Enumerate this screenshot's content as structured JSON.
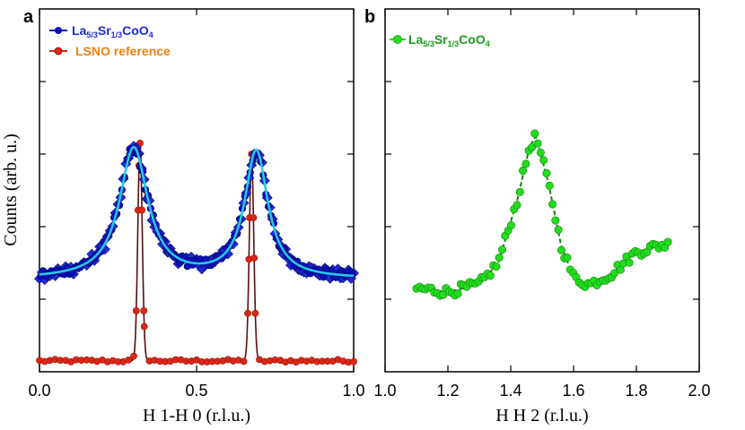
{
  "figure": {
    "panel_a_letter": "a",
    "panel_b_letter": "b"
  },
  "chart_data": [
    {
      "type": "scatter",
      "panel": "a",
      "xlabel": "H 1-H 0 (r.l.u.)",
      "ylabel": "Counts (arb. u.)",
      "xlim": [
        0.0,
        1.0
      ],
      "ylim": [
        0,
        100
      ],
      "xticks": [
        "0.0",
        "0.5",
        "1.0"
      ],
      "y_tick_values": [
        20,
        40,
        60,
        80
      ],
      "y_tick_labels_shown": false,
      "grid": false,
      "legend_position": "top-left",
      "legend": [
        {
          "label_main": "La",
          "sub1": "5/3",
          "mid": "Sr",
          "sub2": "1/3",
          "tail": "CoO",
          "sub3": "4",
          "color": "#0a10b8",
          "text_color": "#1f2bd6"
        },
        {
          "label_main": "LSNO reference",
          "color": "#e02418",
          "text_color": "#f07f10"
        }
      ],
      "series": [
        {
          "name": "La5/3Sr1/3CoO4",
          "marker": "circle",
          "color": "#0a10b8",
          "fit_color": "#25c8e6",
          "model": {
            "baseline": 25.5,
            "peaks": [
              {
                "center": 0.3,
                "amplitude": 36,
                "width": 0.055
              },
              {
                "center": 0.69,
                "amplitude": 35,
                "width": 0.045
              }
            ]
          },
          "x_range": [
            0.0,
            1.0
          ],
          "n_points": 60
        },
        {
          "name": "La5/3Sr1/3CoO4 (diamond markers)",
          "marker": "diamond",
          "color": "#1f2bd6",
          "model": {
            "baseline": 25.5,
            "peaks": [
              {
                "center": 0.3,
                "amplitude": 36,
                "width": 0.055
              },
              {
                "center": 0.69,
                "amplitude": 35,
                "width": 0.045
              }
            ]
          },
          "x_range": [
            0.0,
            1.0
          ],
          "n_points": 60
        },
        {
          "name": "LSNO reference",
          "marker": "circle",
          "color": "#e02418",
          "line_color": "#5a0e0e",
          "model": {
            "baseline": 3,
            "peaks": [
              {
                "center": 0.32,
                "amplitude": 60,
                "width": 0.007
              },
              {
                "center": 0.675,
                "amplitude": 57,
                "width": 0.007
              }
            ]
          },
          "x_range": [
            0.0,
            1.0
          ],
          "n_points": 60
        }
      ]
    },
    {
      "type": "scatter",
      "panel": "b",
      "xlabel": "H H 2 (r.l.u.)",
      "ylabel": "",
      "xlim": [
        1.0,
        2.0
      ],
      "ylim": [
        0,
        100
      ],
      "xticks": [
        "1.0",
        "1.2",
        "1.4",
        "1.6",
        "1.8",
        "2.0"
      ],
      "y_tick_values": [
        20,
        40,
        60,
        80
      ],
      "y_tick_labels_shown": false,
      "grid": false,
      "legend_position": "top-left",
      "legend": [
        {
          "label_main": "La",
          "sub1": "5/3",
          "mid": "Sr",
          "sub2": "1/3",
          "tail": "CoO",
          "sub3": "4",
          "color": "#22dd1e",
          "text_color": "#1a9a18"
        }
      ],
      "series": [
        {
          "name": "La5/3Sr1/3CoO4",
          "marker": "circle",
          "color": "#22dd1e",
          "fit_color": "#1f7a1a",
          "x_range": [
            1.1,
            1.9
          ],
          "n_points": 85,
          "approx_points": [
            [
              1.1,
              23
            ],
            [
              1.2,
              22
            ],
            [
              1.3,
              24
            ],
            [
              1.36,
              30
            ],
            [
              1.42,
              47
            ],
            [
              1.46,
              62
            ],
            [
              1.48,
              65
            ],
            [
              1.52,
              52
            ],
            [
              1.56,
              35
            ],
            [
              1.6,
              26
            ],
            [
              1.65,
              24
            ],
            [
              1.72,
              27
            ],
            [
              1.8,
              33
            ],
            [
              1.88,
              35
            ]
          ]
        }
      ]
    }
  ]
}
